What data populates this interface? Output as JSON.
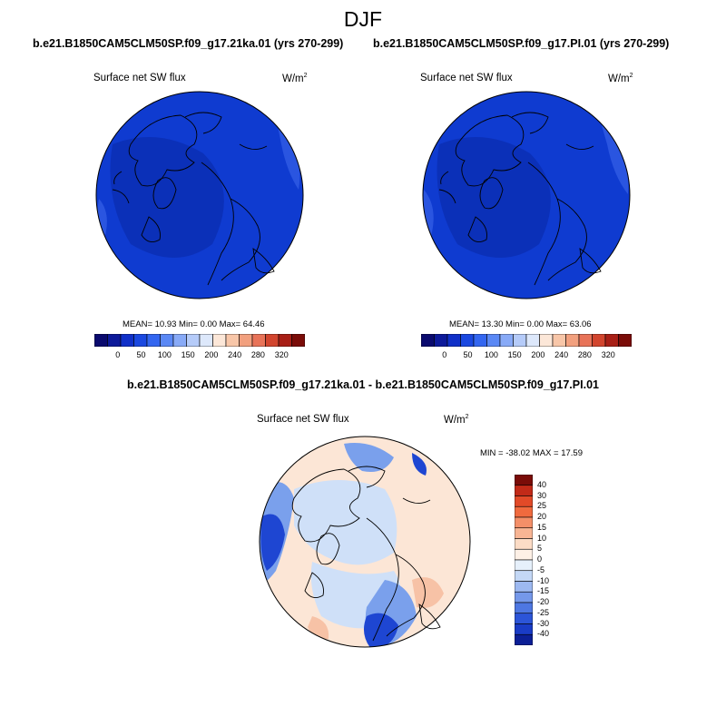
{
  "season": "DJF",
  "panels": [
    {
      "case_title": "b.e21.B1850CAM5CLM50SP.f09_g17.21ka.01 (yrs 270-299)",
      "variable": "Surface net SW flux",
      "units_base": "W/m",
      "units_exp": "2",
      "stats": "MEAN=  10.93  Min=   0.00  Max=  64.46"
    },
    {
      "case_title": "b.e21.B1850CAM5CLM50SP.f09_g17.PI.01 (yrs 270-299)",
      "variable": "Surface net SW flux",
      "units_base": "W/m",
      "units_exp": "2",
      "stats": "MEAN=  13.30  Min=   0.00  Max=  63.06"
    }
  ],
  "abs_colorbar": {
    "colors": [
      "#0a0a6e",
      "#0d1a9a",
      "#1030c8",
      "#1a48e0",
      "#3366f0",
      "#5a88f5",
      "#88aaf7",
      "#b5cbf9",
      "#dde8fb",
      "#fce7d8",
      "#f8c6a8",
      "#f2a07e",
      "#e87358",
      "#d2452e",
      "#a81f16",
      "#7a0c08"
    ],
    "tick_labels": [
      "0",
      "50",
      "100",
      "150",
      "200",
      "240",
      "280",
      "320"
    ]
  },
  "difference": {
    "title": "b.e21.B1850CAM5CLM50SP.f09_g17.21ka.01 - b.e21.B1850CAM5CLM50SP.f09_g17.PI.01",
    "variable": "Surface net SW flux",
    "units_base": "W/m",
    "units_exp": "2",
    "stats": "MIN = -38.02 MAX =  17.59",
    "colorbar": {
      "colors": [
        "#7a0c08",
        "#c22a18",
        "#e24a28",
        "#f06a3e",
        "#f48f68",
        "#f8b594",
        "#fcdcc6",
        "#fdf0e6",
        "#e6f0fb",
        "#c4d8f6",
        "#9db9f1",
        "#7598ea",
        "#4e77e2",
        "#2c55d8",
        "#1a3cc6",
        "#0c1f96"
      ],
      "tick_labels": [
        "40",
        "30",
        "25",
        "20",
        "15",
        "10",
        "5",
        "0",
        "-5",
        "-10",
        "-15",
        "-20",
        "-25",
        "-30",
        "-40"
      ]
    }
  },
  "map_colors": {
    "abs_base": "#0f3bd0",
    "abs_deep": "#0b30b8",
    "abs_light": "#2a55e0",
    "diff_base": "#fce6d6",
    "diff_light_blue": "#cfe0f8",
    "diff_mid_blue": "#7aa0ec",
    "diff_dark_blue": "#1e46d2",
    "diff_pink": "#f7c2a6"
  }
}
